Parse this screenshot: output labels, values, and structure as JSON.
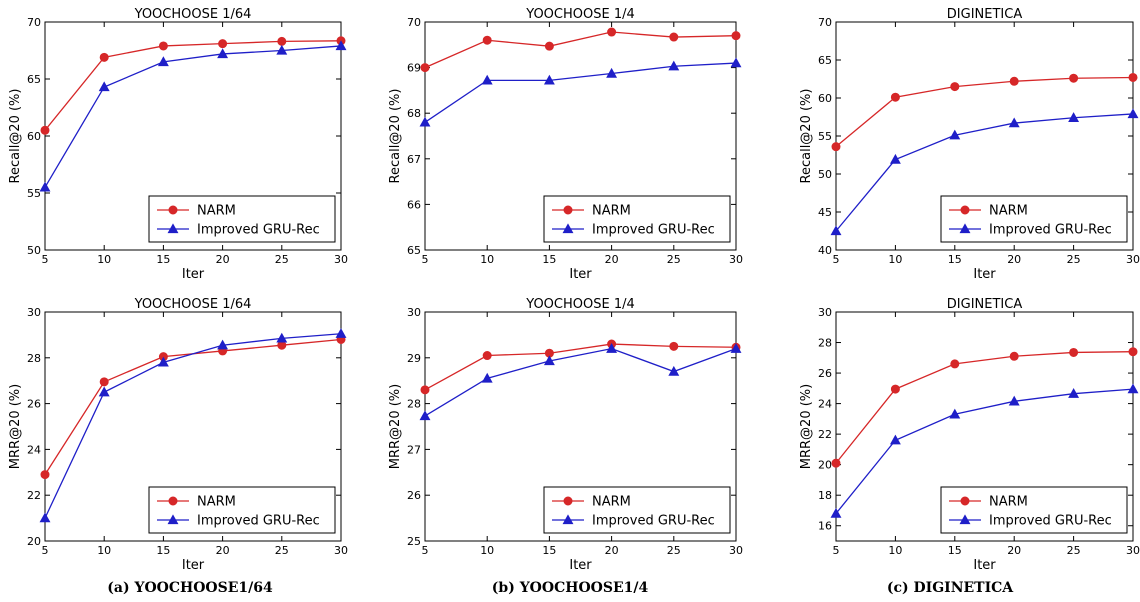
{
  "captions": [
    "(a) YOOCHOOSE1/64",
    "(b) YOOCHOOSE1/4",
    "(c) DIGINETICA"
  ],
  "colors": {
    "NARM": "#d62728",
    "Improved GRU-Rec": "#1f1fc8"
  },
  "chart_data": [
    {
      "type": "line",
      "title": "YOOCHOOSE 1/64",
      "xlabel": "Iter",
      "ylabel": "Recall@20 (%)",
      "x": [
        5,
        10,
        15,
        20,
        25,
        30
      ],
      "xlim": [
        5,
        30
      ],
      "xticks": [
        5,
        10,
        15,
        20,
        25,
        30
      ],
      "ylim": [
        50,
        70
      ],
      "yticks": [
        50,
        55,
        60,
        65,
        70
      ],
      "legend": "bottom-right",
      "series": [
        {
          "name": "NARM",
          "marker": "circle",
          "values": [
            60.5,
            66.9,
            67.9,
            68.1,
            68.3,
            68.35
          ]
        },
        {
          "name": "Improved GRU-Rec",
          "marker": "triangle",
          "values": [
            55.5,
            64.3,
            66.5,
            67.2,
            67.5,
            67.9
          ]
        }
      ]
    },
    {
      "type": "line",
      "title": "YOOCHOOSE 1/4",
      "xlabel": "Iter",
      "ylabel": "Recall@20 (%)",
      "x": [
        5,
        10,
        15,
        20,
        25,
        30
      ],
      "xlim": [
        5,
        30
      ],
      "xticks": [
        5,
        10,
        15,
        20,
        25,
        30
      ],
      "ylim": [
        65,
        70
      ],
      "yticks": [
        65,
        66,
        67,
        68,
        69,
        70
      ],
      "legend": "bottom-right",
      "series": [
        {
          "name": "NARM",
          "marker": "circle",
          "values": [
            69.0,
            69.6,
            69.47,
            69.78,
            69.67,
            69.7
          ]
        },
        {
          "name": "Improved GRU-Rec",
          "marker": "triangle",
          "values": [
            67.8,
            68.72,
            68.72,
            68.87,
            69.03,
            69.1
          ]
        }
      ]
    },
    {
      "type": "line",
      "title": "DIGINETICA",
      "xlabel": "Iter",
      "ylabel": "Recall@20 (%)",
      "x": [
        5,
        10,
        15,
        20,
        25,
        30
      ],
      "xlim": [
        5,
        30
      ],
      "xticks": [
        5,
        10,
        15,
        20,
        25,
        30
      ],
      "ylim": [
        40,
        70
      ],
      "yticks": [
        40,
        45,
        50,
        55,
        60,
        65,
        70
      ],
      "legend": "bottom-right",
      "series": [
        {
          "name": "NARM",
          "marker": "circle",
          "values": [
            53.6,
            60.1,
            61.5,
            62.2,
            62.6,
            62.7
          ]
        },
        {
          "name": "Improved GRU-Rec",
          "marker": "triangle",
          "values": [
            42.5,
            51.9,
            55.1,
            56.7,
            57.4,
            57.9
          ]
        }
      ]
    },
    {
      "type": "line",
      "title": "YOOCHOOSE 1/64",
      "xlabel": "Iter",
      "ylabel": "MRR@20 (%)",
      "x": [
        5,
        10,
        15,
        20,
        25,
        30
      ],
      "xlim": [
        5,
        30
      ],
      "xticks": [
        5,
        10,
        15,
        20,
        25,
        30
      ],
      "ylim": [
        20,
        30
      ],
      "yticks": [
        20,
        22,
        24,
        26,
        28,
        30
      ],
      "legend": "bottom-right",
      "series": [
        {
          "name": "NARM",
          "marker": "circle",
          "values": [
            22.9,
            26.95,
            28.05,
            28.3,
            28.55,
            28.8
          ]
        },
        {
          "name": "Improved GRU-Rec",
          "marker": "triangle",
          "values": [
            21.0,
            26.5,
            27.8,
            28.55,
            28.85,
            29.05
          ]
        }
      ]
    },
    {
      "type": "line",
      "title": "YOOCHOOSE 1/4",
      "xlabel": "Iter",
      "ylabel": "MRR@20 (%)",
      "x": [
        5,
        10,
        15,
        20,
        25,
        30
      ],
      "xlim": [
        5,
        30
      ],
      "xticks": [
        5,
        10,
        15,
        20,
        25,
        30
      ],
      "ylim": [
        25,
        30
      ],
      "yticks": [
        25,
        26,
        27,
        28,
        29,
        30
      ],
      "legend": "bottom-right",
      "series": [
        {
          "name": "NARM",
          "marker": "circle",
          "values": [
            28.3,
            29.05,
            29.1,
            29.3,
            29.25,
            29.23
          ]
        },
        {
          "name": "Improved GRU-Rec",
          "marker": "triangle",
          "values": [
            27.73,
            28.55,
            28.93,
            29.2,
            28.7,
            29.2
          ]
        }
      ]
    },
    {
      "type": "line",
      "title": "DIGINETICA",
      "xlabel": "Iter",
      "ylabel": "MRR@20 (%)",
      "x": [
        5,
        10,
        15,
        20,
        25,
        30
      ],
      "xlim": [
        5,
        30
      ],
      "xticks": [
        5,
        10,
        15,
        20,
        25,
        30
      ],
      "ylim": [
        15,
        30
      ],
      "yticks": [
        16,
        18,
        20,
        22,
        24,
        26,
        28,
        30
      ],
      "legend": "bottom-right",
      "series": [
        {
          "name": "NARM",
          "marker": "circle",
          "values": [
            20.1,
            24.95,
            26.6,
            27.1,
            27.35,
            27.4
          ]
        },
        {
          "name": "Improved GRU-Rec",
          "marker": "triangle",
          "values": [
            16.8,
            21.6,
            23.3,
            24.15,
            24.65,
            24.95
          ]
        }
      ]
    }
  ]
}
